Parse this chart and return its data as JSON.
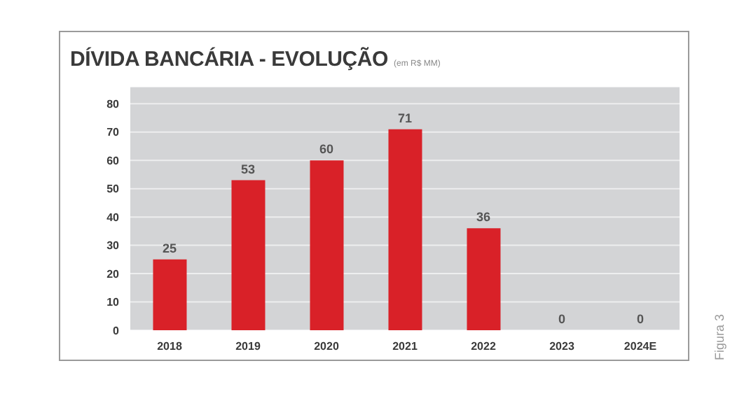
{
  "chart_data": {
    "type": "bar",
    "title": "DÍVIDA BANCÁRIA - EVOLUÇÃO",
    "subtitle": "(em R$ MM)",
    "categories": [
      "2018",
      "2019",
      "2020",
      "2021",
      "2022",
      "2023",
      "2024E"
    ],
    "values": [
      25,
      53,
      60,
      71,
      36,
      0,
      0
    ],
    "color": "#d92128",
    "ylim": [
      0,
      86
    ],
    "yticks": [
      0,
      10,
      20,
      30,
      40,
      50,
      60,
      70,
      80
    ],
    "grid": "y",
    "legend": false,
    "data_labels": true,
    "annotations": [
      "Figura 3"
    ]
  }
}
